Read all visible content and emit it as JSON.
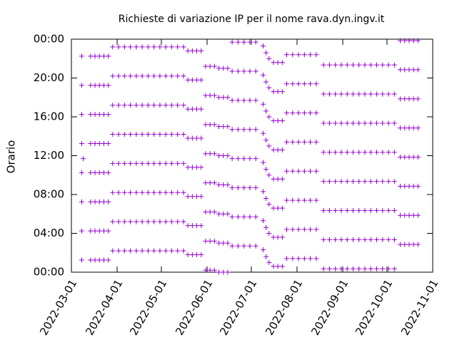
{
  "chart_data": {
    "type": "scatter",
    "title": "Richieste di variazione IP per il nome rava.dyn.ingv.it",
    "y_label": "Orario",
    "xlim": [
      "2022-03-01",
      "2022-11-01"
    ],
    "xticks": [
      "2022-03-01",
      "2022-04-01",
      "2022-05-01",
      "2022-06-01",
      "2022-07-01",
      "2022-08-01",
      "2022-09-01",
      "2022-10-01",
      "2022-11-01"
    ],
    "ylim": [
      0,
      24
    ],
    "yticks": [
      {
        "value": 0,
        "label": "00:00"
      },
      {
        "value": 4,
        "label": "04:00"
      },
      {
        "value": 8,
        "label": "08:00"
      },
      {
        "value": 12,
        "label": "12:00"
      },
      {
        "value": 16,
        "label": "16:00"
      },
      {
        "value": 20,
        "label": "20:00"
      },
      {
        "value": 24,
        "label": "00:00"
      }
    ],
    "series": [
      {
        "color": "#9400d3",
        "x": [
          "2022-03-08",
          "2022-03-09",
          "2022-03-14",
          "2022-03-17",
          "2022-03-20",
          "2022-03-23",
          "2022-03-26",
          "2022-03-29",
          "2022-04-02",
          "2022-04-06",
          "2022-04-10",
          "2022-04-14",
          "2022-04-18",
          "2022-04-22",
          "2022-04-26",
          "2022-04-30",
          "2022-05-04",
          "2022-05-08",
          "2022-05-12",
          "2022-05-16",
          "2022-05-19",
          "2022-05-22",
          "2022-05-25",
          "2022-05-28",
          "2022-05-31",
          "2022-06-03",
          "2022-06-06",
          "2022-06-09",
          "2022-06-12",
          "2022-06-15",
          "2022-06-18",
          "2022-06-22",
          "2022-06-26",
          "2022-06-30",
          "2022-07-04",
          "2022-07-09",
          "2022-07-11",
          "2022-07-13",
          "2022-07-16",
          "2022-07-19",
          "2022-07-22",
          "2022-07-25",
          "2022-07-29",
          "2022-08-02",
          "2022-08-06",
          "2022-08-10",
          "2022-08-14",
          "2022-08-19",
          "2022-08-23",
          "2022-08-27",
          "2022-08-31",
          "2022-09-04",
          "2022-09-08",
          "2022-09-12",
          "2022-09-16",
          "2022-09-20",
          "2022-09-24",
          "2022-09-28",
          "2022-10-02",
          "2022-10-06",
          "2022-10-10",
          "2022-10-13",
          "2022-10-16",
          "2022-10-19",
          "2022-10-22"
        ],
        "values": [
          [
            1.25,
            4.25,
            7.25,
            10.25,
            13.25,
            16.25,
            19.25,
            22.25
          ],
          [
            11.7
          ],
          [
            1.25,
            4.25,
            7.25,
            10.25,
            13.25,
            16.25,
            19.25,
            22.25
          ],
          [
            1.25,
            4.25,
            7.25,
            10.25,
            13.25,
            16.25,
            19.25,
            22.25
          ],
          [
            1.25,
            4.25,
            7.25,
            10.25,
            13.25,
            16.25,
            19.25,
            22.25
          ],
          [
            1.25,
            4.25,
            7.25,
            10.25,
            13.25,
            16.25,
            19.25,
            22.25
          ],
          [
            1.25,
            4.25,
            7.25,
            10.25,
            13.25,
            16.25,
            19.25,
            22.25
          ],
          [
            2.2,
            5.2,
            8.2,
            11.2,
            14.2,
            17.2,
            20.2,
            23.2
          ],
          [
            2.2,
            5.2,
            8.2,
            11.2,
            14.2,
            17.2,
            20.2,
            23.2
          ],
          [
            2.2,
            5.2,
            8.2,
            11.2,
            14.2,
            17.2,
            20.2,
            23.2
          ],
          [
            2.2,
            5.2,
            8.2,
            11.2,
            14.2,
            17.2,
            20.2,
            23.2
          ],
          [
            2.2,
            5.2,
            8.2,
            11.2,
            14.2,
            17.2,
            20.2,
            23.2
          ],
          [
            2.2,
            5.2,
            8.2,
            11.2,
            14.2,
            17.2,
            20.2,
            23.2
          ],
          [
            2.2,
            5.2,
            8.2,
            11.2,
            14.2,
            17.2,
            20.2,
            23.2
          ],
          [
            2.2,
            5.2,
            8.2,
            11.2,
            14.2,
            17.2,
            20.2,
            23.2
          ],
          [
            2.2,
            5.2,
            8.2,
            11.2,
            14.2,
            17.2,
            20.2,
            23.2
          ],
          [
            2.2,
            5.2,
            8.2,
            11.2,
            14.2,
            17.2,
            20.2,
            23.2
          ],
          [
            2.2,
            5.2,
            8.2,
            11.2,
            14.2,
            17.2,
            20.2,
            23.2
          ],
          [
            2.2,
            5.2,
            8.2,
            11.2,
            14.2,
            17.2,
            20.2,
            23.2
          ],
          [
            2.2,
            5.2,
            8.2,
            11.2,
            14.2,
            17.2,
            20.2,
            23.2
          ],
          [
            1.8,
            4.8,
            7.8,
            10.8,
            13.8,
            16.8,
            19.8,
            22.8
          ],
          [
            1.8,
            4.8,
            7.8,
            10.8,
            13.8,
            16.8,
            19.8,
            22.8
          ],
          [
            1.8,
            4.8,
            7.8,
            10.8,
            13.8,
            16.8,
            19.8,
            22.8
          ],
          [
            1.8,
            4.8,
            7.8,
            10.8,
            13.8,
            16.8,
            19.8,
            22.8
          ],
          [
            0.2,
            3.2,
            6.2,
            9.2,
            12.2,
            15.2,
            18.2,
            21.2
          ],
          [
            0.2,
            3.2,
            6.2,
            9.2,
            12.2,
            15.2,
            18.2,
            21.2
          ],
          [
            0.2,
            3.2,
            6.2,
            9.2,
            12.2,
            15.2,
            18.2,
            21.2
          ],
          [
            0,
            3,
            6,
            9,
            12,
            15,
            18,
            21
          ],
          [
            0,
            3,
            6,
            9,
            12,
            15,
            18,
            21
          ],
          [
            0,
            3,
            6,
            9,
            12,
            15,
            18,
            21
          ],
          [
            2.7,
            5.7,
            8.7,
            11.7,
            14.7,
            17.7,
            20.7,
            23.7
          ],
          [
            2.7,
            5.7,
            8.7,
            11.7,
            14.7,
            17.7,
            20.7,
            23.7
          ],
          [
            2.7,
            5.7,
            8.7,
            11.7,
            14.7,
            17.7,
            20.7,
            23.7
          ],
          [
            2.7,
            5.7,
            8.7,
            11.7,
            14.7,
            17.7,
            20.7,
            23.7
          ],
          [
            2.7,
            5.7,
            8.7,
            11.7,
            14.7,
            17.7,
            20.7,
            23.7
          ],
          [
            2.3,
            5.3,
            8.3,
            11.3,
            14.3,
            17.3,
            20.3,
            23.3
          ],
          [
            1.6,
            4.6,
            7.6,
            10.6,
            13.6,
            16.6,
            19.6,
            22.6
          ],
          [
            1,
            4,
            7,
            10,
            13,
            16,
            19,
            22
          ],
          [
            0.6,
            3.6,
            6.6,
            9.6,
            12.6,
            15.6,
            18.6,
            21.6
          ],
          [
            0.6,
            3.6,
            6.6,
            9.6,
            12.6,
            15.6,
            18.6,
            21.6
          ],
          [
            0.6,
            3.6,
            6.6,
            9.6,
            12.6,
            15.6,
            18.6,
            21.6
          ],
          [
            1.4,
            4.4,
            7.4,
            10.4,
            13.4,
            16.4,
            19.4,
            22.4
          ],
          [
            1.4,
            4.4,
            7.4,
            10.4,
            13.4,
            16.4,
            19.4,
            22.4
          ],
          [
            1.4,
            4.4,
            7.4,
            10.4,
            13.4,
            16.4,
            19.4,
            22.4
          ],
          [
            1.4,
            4.4,
            7.4,
            10.4,
            13.4,
            16.4,
            19.4,
            22.4
          ],
          [
            1.4,
            4.4,
            7.4,
            10.4,
            13.4,
            16.4,
            19.4,
            22.4
          ],
          [
            1.4,
            4.4,
            7.4,
            10.4,
            13.4,
            16.4,
            19.4,
            22.4
          ],
          [
            0.35,
            3.35,
            6.35,
            9.35,
            12.35,
            15.35,
            18.35,
            21.35
          ],
          [
            0.35,
            3.35,
            6.35,
            9.35,
            12.35,
            15.35,
            18.35,
            21.35
          ],
          [
            0.35,
            3.35,
            6.35,
            9.35,
            12.35,
            15.35,
            18.35,
            21.35
          ],
          [
            0.35,
            3.35,
            6.35,
            9.35,
            12.35,
            15.35,
            18.35,
            21.35
          ],
          [
            0.35,
            3.35,
            6.35,
            9.35,
            12.35,
            15.35,
            18.35,
            21.35
          ],
          [
            0.35,
            3.35,
            6.35,
            9.35,
            12.35,
            15.35,
            18.35,
            21.35
          ],
          [
            0.35,
            3.35,
            6.35,
            9.35,
            12.35,
            15.35,
            18.35,
            21.35
          ],
          [
            0.35,
            3.35,
            6.35,
            9.35,
            12.35,
            15.35,
            18.35,
            21.35
          ],
          [
            0.35,
            3.35,
            6.35,
            9.35,
            12.35,
            15.35,
            18.35,
            21.35
          ],
          [
            0.35,
            3.35,
            6.35,
            9.35,
            12.35,
            15.35,
            18.35,
            21.35
          ],
          [
            0.35,
            3.35,
            6.35,
            9.35,
            12.35,
            15.35,
            18.35,
            21.35
          ],
          [
            0.35,
            3.35,
            6.35,
            9.35,
            12.35,
            15.35,
            18.35,
            21.35
          ],
          [
            0.35,
            3.35,
            6.35,
            9.35,
            12.35,
            15.35,
            18.35,
            21.35
          ],
          [
            2.85,
            5.85,
            8.85,
            11.85,
            14.85,
            17.85,
            20.85,
            23.85
          ],
          [
            2.85,
            5.85,
            8.85,
            11.85,
            14.85,
            17.85,
            20.85,
            23.85
          ],
          [
            2.85,
            5.85,
            8.85,
            11.85,
            14.85,
            17.85,
            20.85,
            23.85
          ],
          [
            2.85,
            5.85,
            8.85,
            11.85,
            14.85,
            17.85,
            20.85,
            23.85
          ],
          [
            2.85,
            5.85,
            8.85,
            11.85,
            14.85,
            17.85,
            20.85,
            23.85
          ]
        ]
      }
    ]
  }
}
